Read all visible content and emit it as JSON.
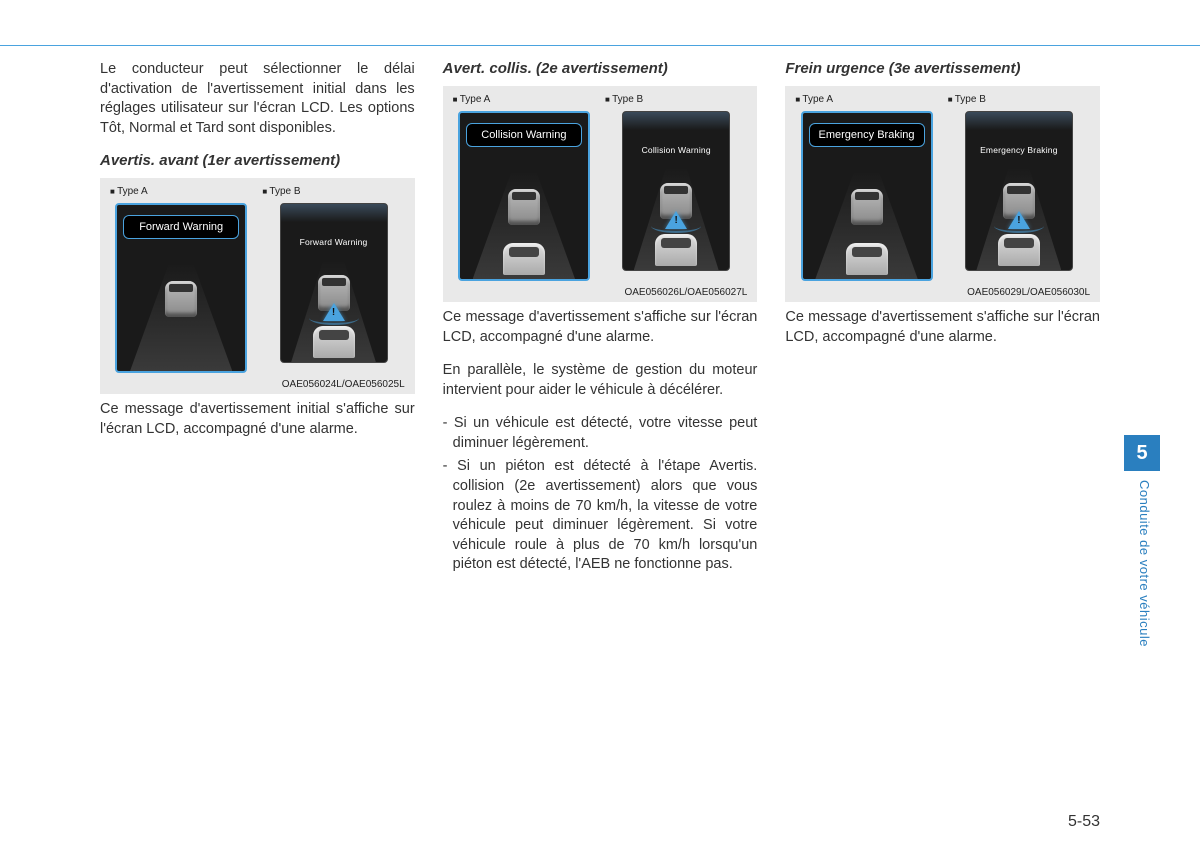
{
  "top_text": "Le conducteur peut sélectionner le délai d'activation de l'avertissement initial dans les réglages utilisateur sur l'écran LCD. Les options Tôt, Normal et Tard sont disponibles.",
  "col1": {
    "subhead": "Avertis. avant (1er avertissement)",
    "type_a": "Type A",
    "type_b": "Type B",
    "banner_a": "Forward Warning",
    "banner_b": "Forward Warning",
    "code": "OAE056024L/OAE056025L",
    "para": "Ce message d'avertissement initial s'affiche sur l'écran LCD, accompagné d'une alarme."
  },
  "col2": {
    "subhead": "Avert. collis. (2e avertissement)",
    "type_a": "Type A",
    "type_b": "Type B",
    "banner_a": "Collision Warning",
    "banner_b": "Collision Warning",
    "code": "OAE056026L/OAE056027L",
    "para1": "Ce message d'avertissement s'affiche sur l'écran LCD, accompagné d'une alarme.",
    "para2": "En parallèle, le système de gestion du moteur intervient pour aider le véhicule à décélérer.",
    "bullet1": "- Si un véhicule est détecté, votre vitesse peut diminuer légèrement.",
    "bullet2": "- Si un piéton est détecté à l'étape Avertis. collision (2e avertissement) alors que vous roulez à moins de 70 km/h, la vitesse de votre véhicule peut diminuer légèrement. Si votre véhicule roule à plus de 70 km/h lorsqu'un piéton est détecté, l'AEB ne fonctionne pas."
  },
  "col3": {
    "subhead": "Frein urgence (3e avertissement)",
    "type_a": "Type A",
    "type_b": "Type B",
    "banner_a": "Emergency Braking",
    "banner_b": "Emergency Braking",
    "code": "OAE056029L/OAE056030L",
    "para": "Ce message d'avertissement s'affiche sur l'écran LCD, accompagné d'une alarme."
  },
  "side_tab": "5",
  "side_text": "Conduite de votre véhicule",
  "page_num": "5-53",
  "colors": {
    "accent": "#2a7fbf",
    "screen_border": "#4aa3df",
    "fig_bg": "#e9e9e9",
    "text": "#333"
  }
}
